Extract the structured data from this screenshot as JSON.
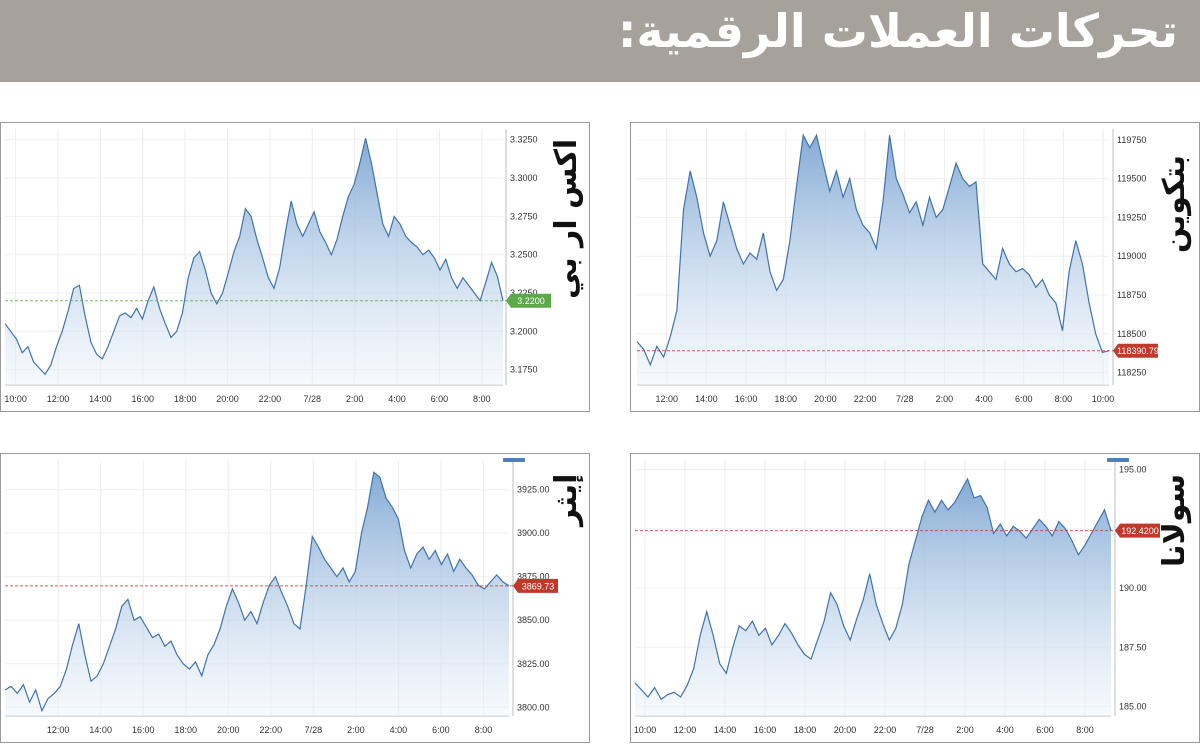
{
  "page": {
    "title": "تحركات العملات الرقمية:"
  },
  "charts": {
    "xrp": {
      "label": "اكس ار بي",
      "price_tag": "3.2200"
    },
    "btc": {
      "label": "بتكوين",
      "price_tag": "118390.79"
    },
    "eth": {
      "label": "إيثر",
      "price_tag": "3869.73"
    },
    "sol": {
      "label": "سولانا",
      "price_tag": "192.4200"
    }
  },
  "chart_data": [
    {
      "type": "area",
      "id": "xrp",
      "series_label": "اكس ار بي",
      "x_ticks": [
        "10:00",
        "12:00",
        "14:00",
        "16:00",
        "18:00",
        "20:00",
        "22:00",
        "7/28",
        "2:00",
        "4:00",
        "6:00",
        "8:00"
      ],
      "y_ticks": [
        "3.1750",
        "3.2000",
        "3.2250",
        "3.2500",
        "3.2750",
        "3.3000",
        "3.3250"
      ],
      "ylim": [
        3.165,
        3.332
      ],
      "reference_line": 3.22,
      "last_price": "3.2200",
      "last_price_color": "#5ca94a",
      "y": [
        3.205,
        3.2,
        3.195,
        3.186,
        3.19,
        3.18,
        3.176,
        3.172,
        3.178,
        3.19,
        3.2,
        3.213,
        3.228,
        3.23,
        3.21,
        3.193,
        3.185,
        3.182,
        3.19,
        3.2,
        3.21,
        3.212,
        3.209,
        3.215,
        3.208,
        3.22,
        3.229,
        3.215,
        3.205,
        3.196,
        3.2,
        3.212,
        3.235,
        3.248,
        3.252,
        3.24,
        3.225,
        3.218,
        3.225,
        3.238,
        3.252,
        3.262,
        3.28,
        3.275,
        3.26,
        3.248,
        3.235,
        3.228,
        3.242,
        3.265,
        3.285,
        3.27,
        3.262,
        3.27,
        3.278,
        3.265,
        3.258,
        3.25,
        3.26,
        3.275,
        3.288,
        3.296,
        3.31,
        3.326,
        3.31,
        3.29,
        3.27,
        3.262,
        3.275,
        3.27,
        3.262,
        3.258,
        3.255,
        3.25,
        3.253,
        3.248,
        3.24,
        3.247,
        3.235,
        3.228,
        3.235,
        3.23,
        3.225,
        3.22,
        3.232,
        3.245,
        3.236,
        3.22
      ],
      "x_range": [
        9.5,
        33.0
      ]
    },
    {
      "type": "area",
      "id": "btc",
      "series_label": "بتكوين",
      "x_ticks": [
        "12:00",
        "14:00",
        "16:00",
        "18:00",
        "20:00",
        "22:00",
        "7/28",
        "2:00",
        "4:00",
        "6:00",
        "8:00",
        "10:00"
      ],
      "y_ticks": [
        "118250",
        "118500",
        "118750",
        "119000",
        "119250",
        "119500",
        "119750"
      ],
      "ylim": [
        118170,
        119820
      ],
      "reference_line": 118390.79,
      "last_price": "118390.79",
      "last_price_color": "#c0392b",
      "y": [
        118450,
        118400,
        118300,
        118420,
        118350,
        118480,
        118650,
        119300,
        119550,
        119380,
        119150,
        119000,
        119100,
        119350,
        119200,
        119050,
        118950,
        119020,
        118980,
        119150,
        118900,
        118780,
        118850,
        119100,
        119450,
        119780,
        119700,
        119780,
        119600,
        119420,
        119550,
        119380,
        119500,
        119300,
        119200,
        119150,
        119050,
        119350,
        119780,
        119500,
        119400,
        119280,
        119350,
        119200,
        119380,
        119250,
        119300,
        119450,
        119600,
        119500,
        119450,
        119480,
        118950,
        118900,
        118850,
        119050,
        118950,
        118900,
        118920,
        118880,
        118800,
        118850,
        118750,
        118700,
        118520,
        118900,
        119100,
        118950,
        118700,
        118500,
        118380,
        118390.79
      ],
      "x_range": [
        10.5,
        34.3
      ]
    },
    {
      "type": "area",
      "id": "eth",
      "series_label": "إيثر",
      "x_ticks": [
        "12:00",
        "14:00",
        "16:00",
        "18:00",
        "20:00",
        "22:00",
        "7/28",
        "2:00",
        "4:00",
        "6:00",
        "8:00"
      ],
      "y_ticks": [
        "3800.00",
        "3825.00",
        "3850.00",
        "3875.00",
        "3900.00",
        "3925.00"
      ],
      "ylim": [
        3795,
        3942
      ],
      "reference_line": 3869.73,
      "last_price": "3869.73",
      "last_price_color": "#c0392b",
      "y": [
        3810,
        3812,
        3808,
        3813,
        3803,
        3810,
        3798,
        3805,
        3808,
        3812,
        3822,
        3836,
        3848,
        3830,
        3815,
        3818,
        3825,
        3835,
        3845,
        3858,
        3862,
        3850,
        3852,
        3846,
        3840,
        3842,
        3835,
        3838,
        3830,
        3825,
        3822,
        3826,
        3818,
        3830,
        3836,
        3845,
        3858,
        3868,
        3860,
        3850,
        3855,
        3848,
        3860,
        3870,
        3875,
        3866,
        3858,
        3848,
        3845,
        3870,
        3898,
        3892,
        3885,
        3880,
        3875,
        3880,
        3872,
        3878,
        3900,
        3915,
        3935,
        3932,
        3920,
        3915,
        3908,
        3890,
        3880,
        3888,
        3892,
        3885,
        3890,
        3882,
        3888,
        3878,
        3885,
        3880,
        3876,
        3870,
        3868,
        3872,
        3876,
        3872,
        3869.73
      ],
      "x_range": [
        9.5,
        33.2
      ]
    },
    {
      "type": "area",
      "id": "sol",
      "series_label": "سولانا",
      "x_ticks": [
        "10:00",
        "12:00",
        "14:00",
        "16:00",
        "18:00",
        "20:00",
        "22:00",
        "7/28",
        "2:00",
        "4:00",
        "6:00",
        "8:00"
      ],
      "y_ticks": [
        "185.00",
        "187.50",
        "190.00",
        "192.50",
        "195.00"
      ],
      "ylim": [
        184.6,
        195.4
      ],
      "reference_line": 192.42,
      "last_price": "192.4200",
      "last_price_color": "#c0392b",
      "y": [
        186.0,
        185.7,
        185.4,
        185.8,
        185.3,
        185.5,
        185.6,
        185.4,
        185.9,
        186.6,
        188.0,
        189.0,
        188.0,
        186.8,
        186.4,
        187.5,
        188.4,
        188.2,
        188.6,
        188.0,
        188.3,
        187.6,
        188.0,
        188.5,
        188.1,
        187.6,
        187.2,
        187.0,
        187.8,
        188.6,
        189.8,
        189.3,
        188.4,
        187.8,
        188.7,
        189.5,
        190.6,
        189.3,
        188.5,
        187.8,
        188.3,
        189.3,
        191.0,
        192.0,
        193.0,
        193.7,
        193.2,
        193.7,
        193.3,
        193.6,
        194.1,
        194.6,
        193.8,
        193.9,
        193.4,
        192.3,
        192.7,
        192.2,
        192.6,
        192.4,
        192.1,
        192.5,
        192.9,
        192.6,
        192.2,
        192.8,
        192.5,
        192.0,
        191.4,
        191.8,
        192.3,
        192.8,
        193.3,
        192.42
      ],
      "x_range": [
        9.5,
        33.3
      ]
    }
  ]
}
